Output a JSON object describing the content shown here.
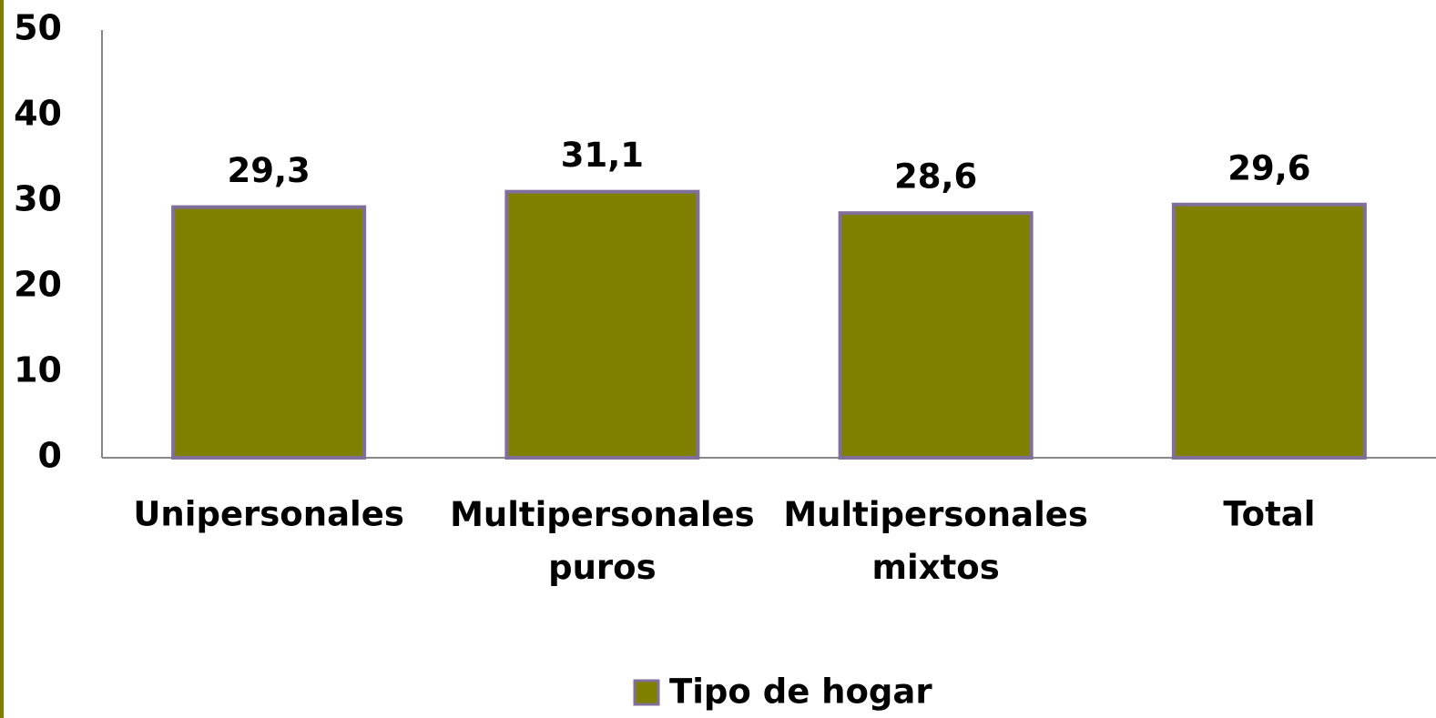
{
  "chart_data": {
    "type": "bar",
    "categories": [
      "Unipersonales",
      "Multipersonales puros",
      "Multipersonales mixtos",
      "Total"
    ],
    "series": [
      {
        "name": "Tipo de hogar",
        "color": "#808000",
        "values": [
          29.3,
          31.1,
          28.6,
          29.6
        ],
        "value_labels": [
          "29,3",
          "31,1",
          "28,6",
          "29,6"
        ]
      }
    ],
    "ylim": [
      0,
      50
    ],
    "yticks": [
      0,
      10,
      20,
      30,
      40,
      50
    ],
    "grid": false,
    "legend": "bottom"
  }
}
